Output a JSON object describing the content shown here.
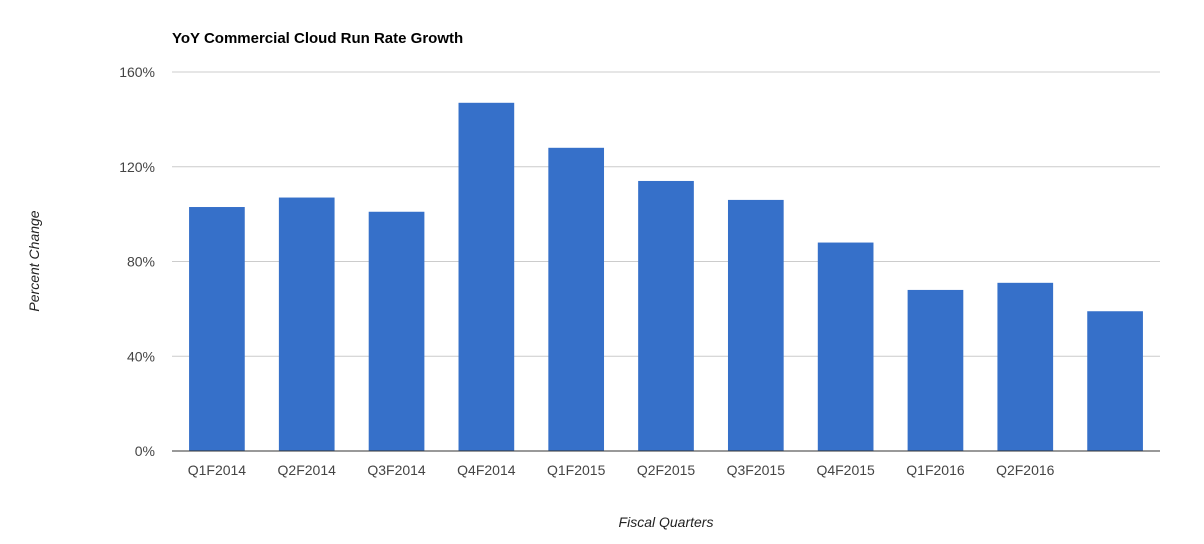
{
  "chart_data": {
    "type": "bar",
    "title": "YoY Commercial Cloud Run Rate Growth",
    "xlabel": "Fiscal Quarters",
    "ylabel": "Percent Change",
    "categories": [
      "Q1F2014",
      "Q2F2014",
      "Q3F2014",
      "Q4F2014",
      "Q1F2015",
      "Q2F2015",
      "Q3F2015",
      "Q4F2015",
      "Q1F2016",
      "Q2F2016",
      ""
    ],
    "values": [
      103,
      107,
      101,
      147,
      128,
      114,
      106,
      88,
      68,
      71,
      59
    ],
    "ylim": [
      0,
      160
    ],
    "yticks": [
      0,
      40,
      80,
      120,
      160
    ],
    "ytick_labels": [
      "0%",
      "40%",
      "80%",
      "120%",
      "160%"
    ],
    "grid": true,
    "colors": {
      "bar": "#3670c9",
      "grid": "#cccccc",
      "baseline": "#333333"
    }
  }
}
